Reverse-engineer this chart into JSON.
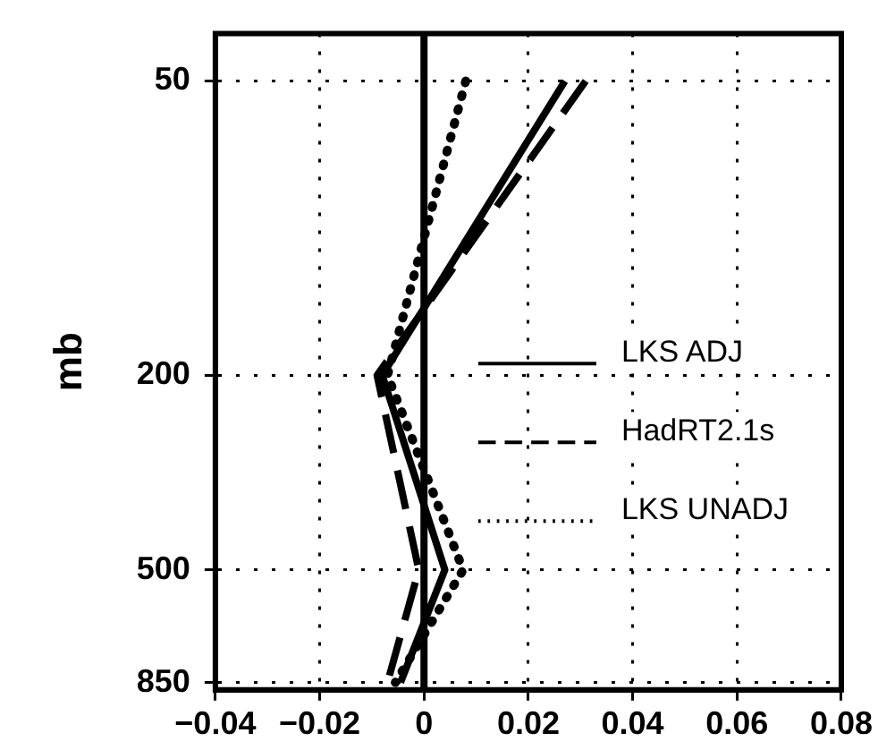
{
  "chart_data": {
    "type": "line",
    "ylabel": "mb",
    "xlim": [
      -0.04,
      0.08
    ],
    "xticks": [
      {
        "value": -0.04,
        "label": "−0.04"
      },
      {
        "value": -0.02,
        "label": "−0.02"
      },
      0,
      0.02,
      0.04,
      0.06,
      0.08
    ],
    "ylim": [
      880,
      40
    ],
    "yticks": [
      50,
      200,
      500,
      850
    ],
    "log": "y",
    "grid": true,
    "legend": "right",
    "marker": "none",
    "ref_lines": [
      {
        "axis": "x",
        "value": 0,
        "color": "#000000"
      }
    ],
    "series": [
      {
        "name": "LKS ADJ",
        "color": "#000000",
        "line_style": "solid",
        "x": [
          0.027,
          -0.008,
          0.004,
          -0.0045
        ],
        "values": [
          50,
          200,
          500,
          850
        ]
      },
      {
        "name": "HadRT2.1s",
        "color": "#000000",
        "line_style": "dashed",
        "x": [
          0.031,
          -0.009,
          -0.001,
          -0.007
        ],
        "values": [
          50,
          200,
          500,
          850
        ]
      },
      {
        "name": "LKS UNADJ",
        "color": "#000000",
        "line_style": "dotted",
        "x": [
          0.008,
          -0.007,
          0.0075,
          -0.0055
        ],
        "values": [
          50,
          200,
          500,
          850
        ]
      }
    ]
  }
}
